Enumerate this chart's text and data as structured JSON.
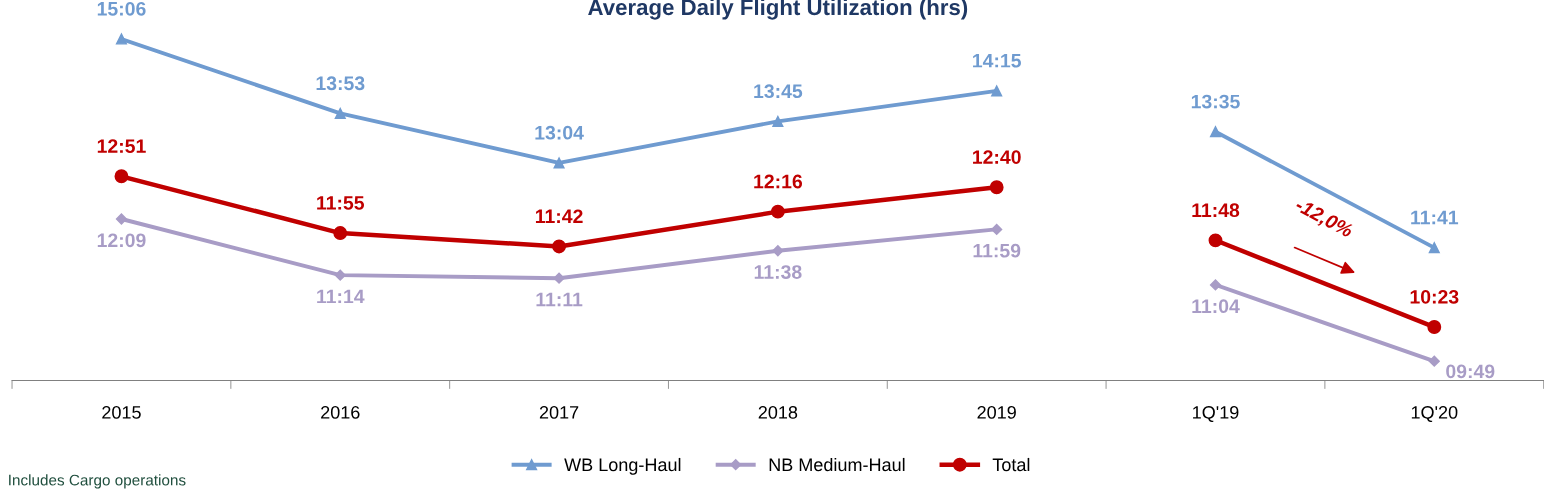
{
  "chart_data": {
    "type": "line",
    "title": "Average Daily Flight Utilization (hrs)",
    "categories": [
      "2015",
      "2016",
      "2017",
      "2018",
      "2019",
      "1Q'19",
      "1Q'20"
    ],
    "series": [
      {
        "name": "WB Long-Haul",
        "color": "#6f9bd0",
        "marker": "triangle",
        "values": [
          15.1,
          13.88,
          13.07,
          13.75,
          14.25,
          null,
          null
        ],
        "value_labels": [
          "15:06",
          "13:53",
          "13:04",
          "13:45",
          "14:15",
          null,
          null
        ]
      },
      {
        "name": "NB Medium-Haul",
        "color": "#a89cc6",
        "marker": "diamond",
        "values": [
          12.15,
          11.23,
          11.18,
          11.63,
          11.98,
          null,
          null
        ],
        "value_labels": [
          "12:09",
          "11:14",
          "11:11",
          "11:38",
          "11:59",
          null,
          null
        ]
      },
      {
        "name": "Total",
        "color": "#c00000",
        "marker": "circle",
        "values": [
          12.85,
          11.92,
          11.7,
          12.27,
          12.67,
          null,
          null
        ],
        "value_labels": [
          "12:51",
          "11:55",
          "11:42",
          "12:16",
          "12:40",
          null,
          null
        ]
      },
      {
        "color": "#6f9bd0",
        "marker": "triangle",
        "values": [
          null,
          null,
          null,
          null,
          null,
          13.58,
          11.68
        ],
        "value_labels": [
          null,
          null,
          null,
          null,
          null,
          "13:35",
          "11:41"
        ]
      },
      {
        "color": "#a89cc6",
        "marker": "diamond",
        "values": [
          null,
          null,
          null,
          null,
          null,
          11.07,
          9.82
        ],
        "value_labels": [
          null,
          null,
          null,
          null,
          null,
          "11:04",
          "09:49"
        ]
      },
      {
        "color": "#c00000",
        "marker": "circle",
        "values": [
          null,
          null,
          null,
          null,
          null,
          11.8,
          10.38
        ],
        "value_labels": [
          null,
          null,
          null,
          null,
          null,
          "11:48",
          "10:23"
        ]
      }
    ],
    "legend": "bottom",
    "grid": false,
    "line_style": "solid",
    "annotations": [
      "-12,0%",
      "Includes Cargo operations"
    ]
  }
}
